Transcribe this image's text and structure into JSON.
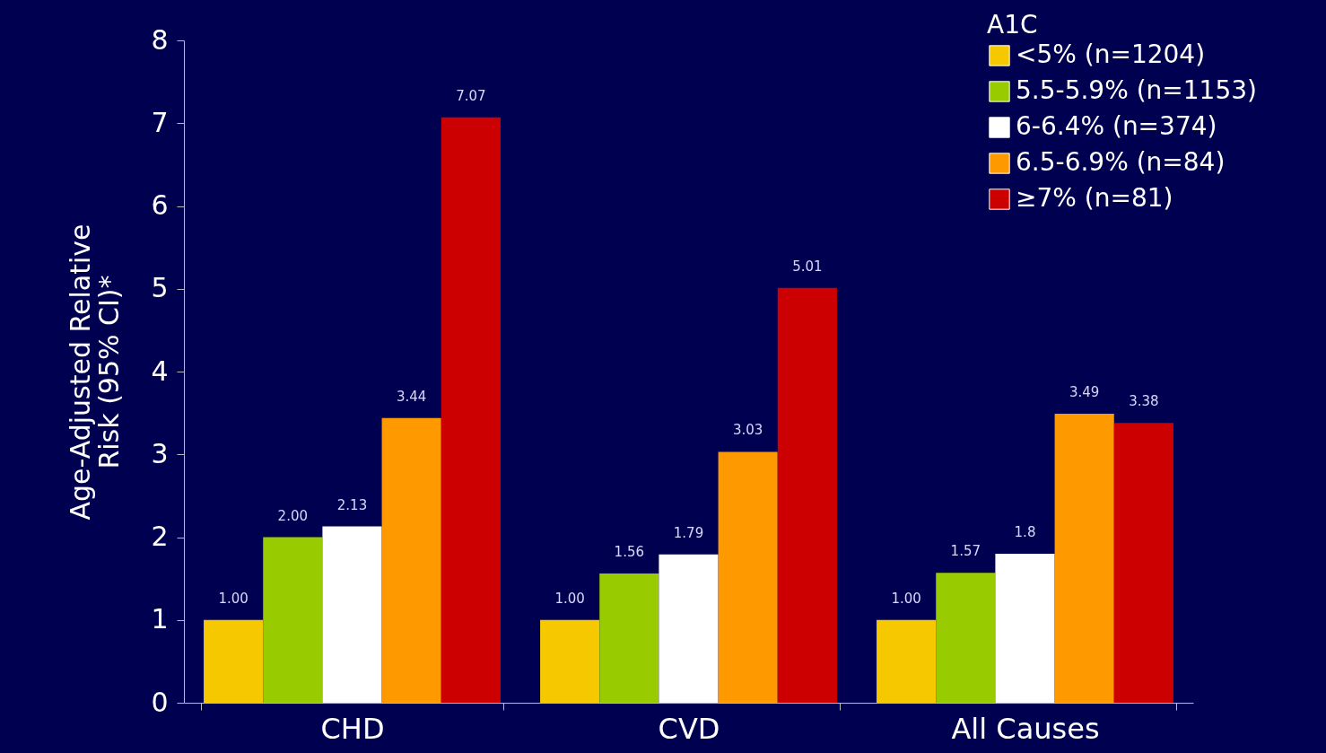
{
  "chart_data": {
    "type": "bar",
    "ylabel": "Age-Adjusted Relative\nRisk (95% CI)*",
    "legend_title": "A1C",
    "legend": "top right",
    "grid": false,
    "categories": [
      "CHD",
      "CVD",
      "All Causes"
    ],
    "ylim": [
      0,
      8
    ],
    "yticks": [
      0,
      1,
      2,
      3,
      4,
      5,
      6,
      7,
      8
    ],
    "series": [
      {
        "name": "<5% (n=1204)",
        "color": "#f5c800",
        "values": [
          1.0,
          1.0,
          1.0
        ],
        "value_labels": [
          "1.00",
          "1.00",
          "1.00"
        ]
      },
      {
        "name": "5.5-5.9% (n=1153)",
        "color": "#99cc00",
        "values": [
          2.0,
          1.56,
          1.57
        ],
        "value_labels": [
          "2.00",
          "1.56",
          "1.57"
        ]
      },
      {
        "name": "6-6.4% (n=374)",
        "color": "#ffffff",
        "values": [
          2.13,
          1.79,
          1.8
        ],
        "value_labels": [
          "2.13",
          "1.79",
          "1.8"
        ]
      },
      {
        "name": "6.5-6.9% (n=84)",
        "color": "#ff9900",
        "values": [
          3.44,
          3.03,
          3.49
        ],
        "value_labels": [
          "3.44",
          "3.03",
          "3.49"
        ]
      },
      {
        "name": "≥7% (n=81)",
        "color": "#cc0000",
        "values": [
          7.07,
          5.01,
          3.38
        ],
        "value_labels": [
          "7.07",
          "5.01",
          "3.38"
        ]
      }
    ]
  }
}
